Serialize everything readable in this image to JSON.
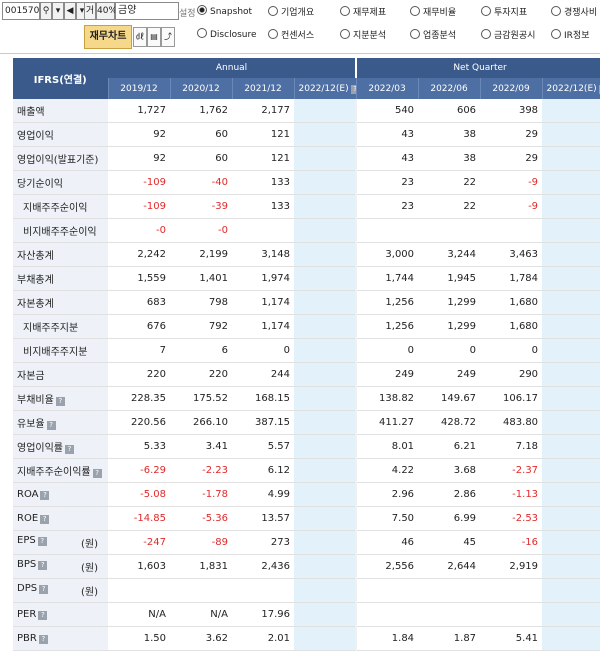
{
  "toolbar": {
    "code": "001570",
    "mode_label": "거",
    "zoom": "40%",
    "company": "금양",
    "setting_label": "설정",
    "radios": [
      {
        "label": "Snapshot",
        "selected": true
      },
      {
        "label": "기업개요",
        "selected": false
      },
      {
        "label": "재무제표",
        "selected": false
      },
      {
        "label": "재무비율",
        "selected": false
      },
      {
        "label": "투자지표",
        "selected": false
      },
      {
        "label": "경쟁사비",
        "selected": false
      },
      {
        "label": "Disclosure",
        "selected": false
      },
      {
        "label": "컨센서스",
        "selected": false
      },
      {
        "label": "지분분석",
        "selected": false
      },
      {
        "label": "업종분석",
        "selected": false
      },
      {
        "label": "금감원공시",
        "selected": false
      },
      {
        "label": "IR정보",
        "selected": false
      }
    ],
    "fin_chart_label": "재무차트"
  },
  "table": {
    "corner": "IFRS(연결)",
    "group_annual": "Annual",
    "group_quarter": "Net Quarter",
    "periods": [
      "2019/12",
      "2020/12",
      "2021/12",
      "2022/12(E)",
      "2022/03",
      "2022/06",
      "2022/09",
      "2022/12(E)"
    ],
    "rows": [
      {
        "label": "매출액",
        "sub": false,
        "unit": "",
        "values": [
          "1,727",
          "1,762",
          "2,177",
          "",
          "540",
          "606",
          "398",
          ""
        ]
      },
      {
        "label": "영업이익",
        "sub": false,
        "unit": "",
        "values": [
          "92",
          "60",
          "121",
          "",
          "43",
          "38",
          "29",
          ""
        ]
      },
      {
        "label": "영업이익(발표기준)",
        "sub": false,
        "unit": "",
        "values": [
          "92",
          "60",
          "121",
          "",
          "43",
          "38",
          "29",
          ""
        ]
      },
      {
        "label": "당기순이익",
        "sub": false,
        "unit": "",
        "values": [
          "-109",
          "-40",
          "133",
          "",
          "23",
          "22",
          "-9",
          ""
        ]
      },
      {
        "label": "지배주주순이익",
        "sub": true,
        "unit": "",
        "values": [
          "-109",
          "-39",
          "133",
          "",
          "23",
          "22",
          "-9",
          ""
        ]
      },
      {
        "label": "비지배주주순이익",
        "sub": true,
        "unit": "",
        "values": [
          "-0",
          "-0",
          "",
          "",
          "",
          "",
          "",
          ""
        ]
      },
      {
        "label": "자산총계",
        "sub": false,
        "unit": "",
        "values": [
          "2,242",
          "2,199",
          "3,148",
          "",
          "3,000",
          "3,244",
          "3,463",
          ""
        ]
      },
      {
        "label": "부채총계",
        "sub": false,
        "unit": "",
        "values": [
          "1,559",
          "1,401",
          "1,974",
          "",
          "1,744",
          "1,945",
          "1,784",
          ""
        ]
      },
      {
        "label": "자본총계",
        "sub": false,
        "unit": "",
        "values": [
          "683",
          "798",
          "1,174",
          "",
          "1,256",
          "1,299",
          "1,680",
          ""
        ]
      },
      {
        "label": "지배주주지분",
        "sub": true,
        "unit": "",
        "values": [
          "676",
          "792",
          "1,174",
          "",
          "1,256",
          "1,299",
          "1,680",
          ""
        ]
      },
      {
        "label": "비지배주주지분",
        "sub": true,
        "unit": "",
        "values": [
          "7",
          "6",
          "0",
          "",
          "0",
          "0",
          "0",
          ""
        ]
      },
      {
        "label": "자본금",
        "sub": false,
        "unit": "",
        "values": [
          "220",
          "220",
          "244",
          "",
          "249",
          "249",
          "290",
          ""
        ]
      },
      {
        "label": "부채비율",
        "sub": false,
        "unit": "",
        "info": true,
        "values": [
          "228.35",
          "175.52",
          "168.15",
          "",
          "138.82",
          "149.67",
          "106.17",
          ""
        ]
      },
      {
        "label": "유보율",
        "sub": false,
        "unit": "",
        "info": true,
        "values": [
          "220.56",
          "266.10",
          "387.15",
          "",
          "411.27",
          "428.72",
          "483.80",
          ""
        ]
      },
      {
        "label": "영업이익률",
        "sub": false,
        "unit": "",
        "info": true,
        "values": [
          "5.33",
          "3.41",
          "5.57",
          "",
          "8.01",
          "6.21",
          "7.18",
          ""
        ]
      },
      {
        "label": "지배주주순이익률",
        "sub": false,
        "unit": "",
        "info": true,
        "values": [
          "-6.29",
          "-2.23",
          "6.12",
          "",
          "4.22",
          "3.68",
          "-2.37",
          ""
        ]
      },
      {
        "label": "ROA",
        "sub": false,
        "unit": "",
        "info": true,
        "values": [
          "-5.08",
          "-1.78",
          "4.99",
          "",
          "2.96",
          "2.86",
          "-1.13",
          ""
        ]
      },
      {
        "label": "ROE",
        "sub": false,
        "unit": "",
        "info": true,
        "values": [
          "-14.85",
          "-5.36",
          "13.57",
          "",
          "7.50",
          "6.99",
          "-2.53",
          ""
        ]
      },
      {
        "label": "EPS",
        "sub": false,
        "unit": "(원)",
        "info": true,
        "values": [
          "-247",
          "-89",
          "273",
          "",
          "46",
          "45",
          "-16",
          ""
        ]
      },
      {
        "label": "BPS",
        "sub": false,
        "unit": "(원)",
        "info": true,
        "values": [
          "1,603",
          "1,831",
          "2,436",
          "",
          "2,556",
          "2,644",
          "2,919",
          ""
        ]
      },
      {
        "label": "DPS",
        "sub": false,
        "unit": "(원)",
        "info": true,
        "values": [
          "",
          "",
          "",
          "",
          "",
          "",
          "",
          ""
        ]
      },
      {
        "label": "PER",
        "sub": false,
        "unit": "",
        "info": true,
        "values": [
          "N/A",
          "N/A",
          "17.96",
          "",
          "",
          "",
          "",
          ""
        ]
      },
      {
        "label": "PBR",
        "sub": false,
        "unit": "",
        "info": true,
        "values": [
          "1.50",
          "3.62",
          "2.01",
          "",
          "1.84",
          "1.87",
          "5.41",
          ""
        ]
      }
    ]
  },
  "colors": {
    "negative": "#e12a2a",
    "header": "#3a5a8c",
    "estimate_col": "#e3f1fb",
    "label_col": "#eef2f8"
  }
}
